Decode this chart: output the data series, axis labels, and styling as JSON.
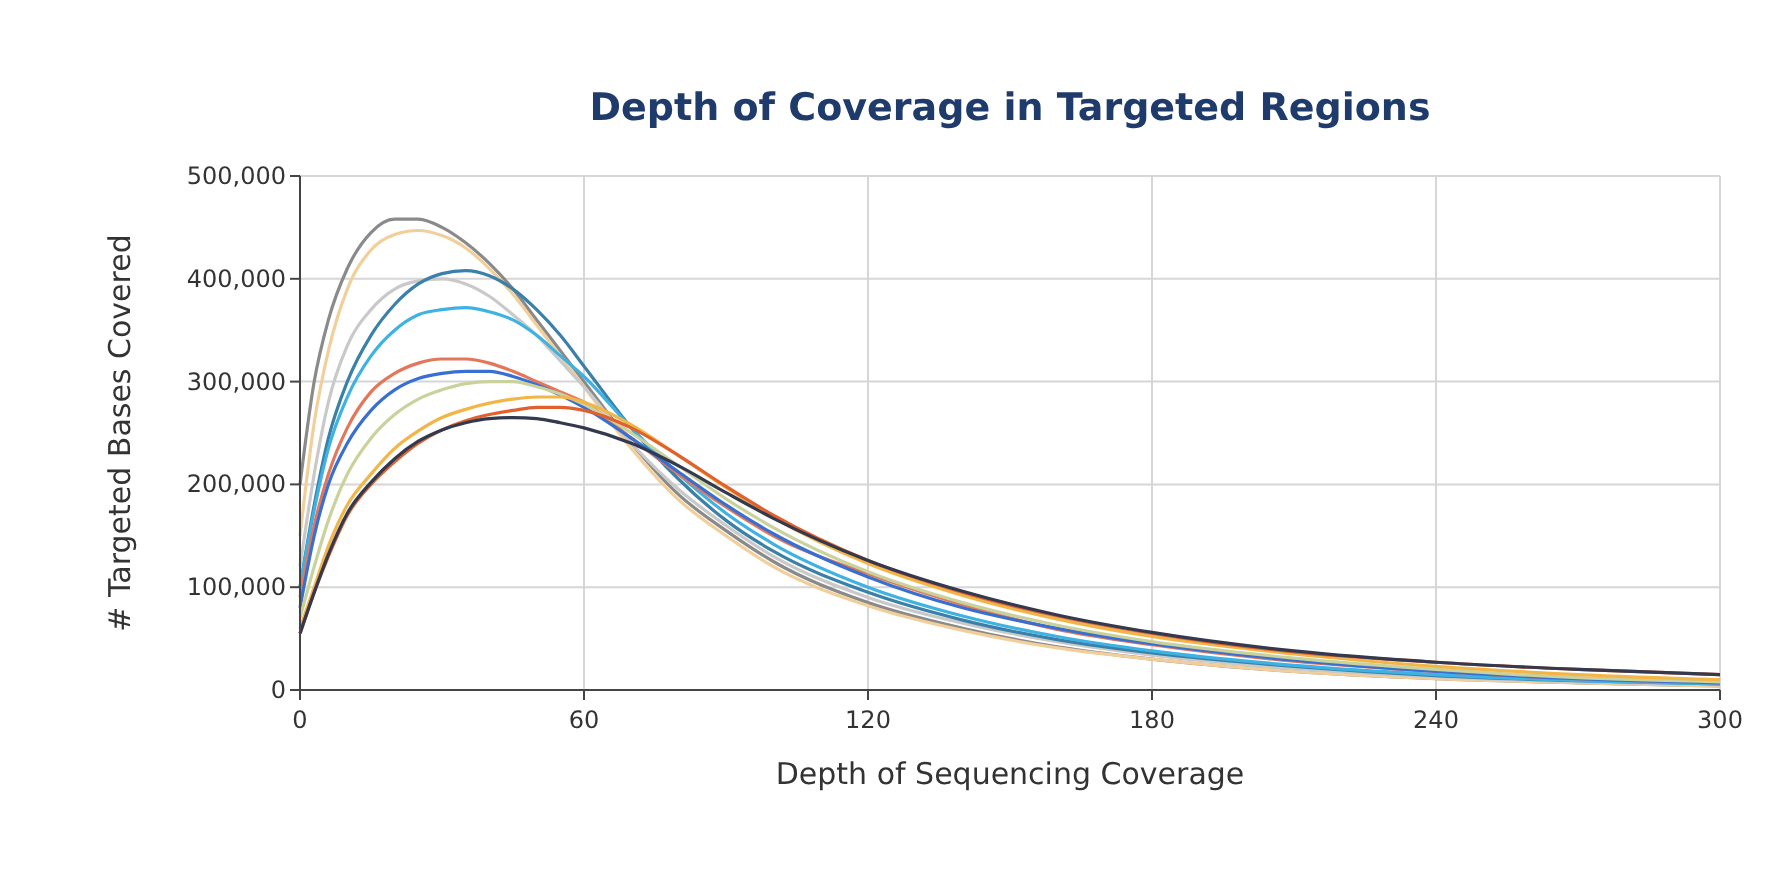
{
  "chart_data": {
    "type": "line",
    "title": "Depth of Coverage in Targeted Regions",
    "xlabel": "Depth of Sequencing Coverage",
    "ylabel": "# Targeted Bases Covered",
    "x": [
      0,
      3,
      6,
      10,
      15,
      20,
      25,
      30,
      35,
      40,
      45,
      50,
      55,
      60,
      70,
      80,
      90,
      100,
      120,
      140,
      160,
      180,
      210,
      240,
      270,
      300
    ],
    "series": [
      {
        "color": "#8a8a8a",
        "values": [
          200000,
          300000,
          360000,
          410000,
          445000,
          458000,
          458000,
          450000,
          435000,
          415000,
          390000,
          360000,
          330000,
          300000,
          240000,
          190000,
          155000,
          125000,
          85000,
          60000,
          42000,
          30000,
          18000,
          11000,
          7000,
          4000
        ]
      },
      {
        "color": "#f2cf9a",
        "values": [
          150000,
          260000,
          330000,
          390000,
          428000,
          443000,
          447000,
          442000,
          430000,
          410000,
          385000,
          355000,
          325000,
          295000,
          235000,
          185000,
          150000,
          120000,
          82000,
          58000,
          41000,
          30000,
          18000,
          11000,
          7000,
          4000
        ]
      },
      {
        "color": "#c9c9c9",
        "values": [
          120000,
          210000,
          280000,
          335000,
          370000,
          390000,
          398000,
          400000,
          395000,
          383000,
          365000,
          345000,
          320000,
          295000,
          240000,
          195000,
          160000,
          130000,
          90000,
          65000,
          47000,
          34000,
          21000,
          13000,
          8000,
          5000
        ]
      },
      {
        "color": "#3a80a8",
        "values": [
          100000,
          180000,
          245000,
          300000,
          345000,
          375000,
          395000,
          405000,
          408000,
          403000,
          390000,
          370000,
          345000,
          315000,
          255000,
          205000,
          165000,
          135000,
          95000,
          68000,
          49000,
          36000,
          23000,
          14000,
          9000,
          6000
        ]
      },
      {
        "color": "#3db2e3",
        "values": [
          100000,
          175000,
          235000,
          285000,
          325000,
          350000,
          365000,
          370000,
          372000,
          368000,
          360000,
          345000,
          325000,
          305000,
          255000,
          210000,
          172000,
          142000,
          100000,
          72000,
          52000,
          38000,
          24000,
          15000,
          9000,
          6000
        ]
      },
      {
        "color": "#e2775a",
        "values": [
          90000,
          160000,
          210000,
          255000,
          290000,
          308000,
          318000,
          322000,
          322000,
          318000,
          310000,
          300000,
          290000,
          280000,
          245000,
          210000,
          178000,
          150000,
          113000,
          83000,
          59000,
          44000,
          28000,
          18000,
          11000,
          7000
        ]
      },
      {
        "color": "#3a6fd2",
        "values": [
          80000,
          150000,
          200000,
          240000,
          272000,
          292000,
          303000,
          308000,
          310000,
          310000,
          305000,
          297000,
          287000,
          275000,
          245000,
          212000,
          180000,
          152000,
          110000,
          80000,
          60000,
          45000,
          29000,
          18000,
          11000,
          7000
        ]
      },
      {
        "color": "#c9d29a",
        "values": [
          70000,
          120000,
          165000,
          210000,
          245000,
          268000,
          283000,
          292000,
          298000,
          300000,
          300000,
          295000,
          288000,
          278000,
          250000,
          218000,
          186000,
          158000,
          115000,
          85000,
          63000,
          47000,
          31000,
          20000,
          12000,
          8000
        ]
      },
      {
        "color": "#f2b548",
        "values": [
          60000,
          100000,
          140000,
          180000,
          210000,
          235000,
          252000,
          265000,
          273000,
          279000,
          283000,
          285000,
          285000,
          280000,
          258000,
          228000,
          197000,
          168000,
          123000,
          92000,
          69000,
          52000,
          35000,
          23000,
          15000,
          10000
        ]
      },
      {
        "color": "#e0612e",
        "values": [
          55000,
          95000,
          130000,
          170000,
          200000,
          222000,
          240000,
          253000,
          262000,
          268000,
          272000,
          275000,
          275000,
          272000,
          255000,
          228000,
          198000,
          170000,
          126000,
          95000,
          72000,
          55000,
          37000,
          27000,
          20000,
          15000
        ]
      },
      {
        "color": "#33394f",
        "values": [
          55000,
          95000,
          132000,
          172000,
          202000,
          225000,
          242000,
          253000,
          260000,
          264000,
          265000,
          264000,
          260000,
          255000,
          240000,
          218000,
          192000,
          167000,
          126000,
          96000,
          73000,
          56000,
          38000,
          27000,
          20000,
          15000
        ]
      }
    ],
    "xlim": [
      0,
      300
    ],
    "xticks": [
      0,
      60,
      120,
      180,
      240,
      300
    ],
    "ylim": [
      0,
      500000
    ],
    "yticks": [
      {
        "value": 0,
        "label": "0"
      },
      {
        "value": 100000,
        "label": "100,000"
      },
      {
        "value": 200000,
        "label": "200,000"
      },
      {
        "value": 300000,
        "label": "300,000"
      },
      {
        "value": 400000,
        "label": "400,000"
      },
      {
        "value": 500000,
        "label": "500,000"
      }
    ],
    "grid": true
  }
}
